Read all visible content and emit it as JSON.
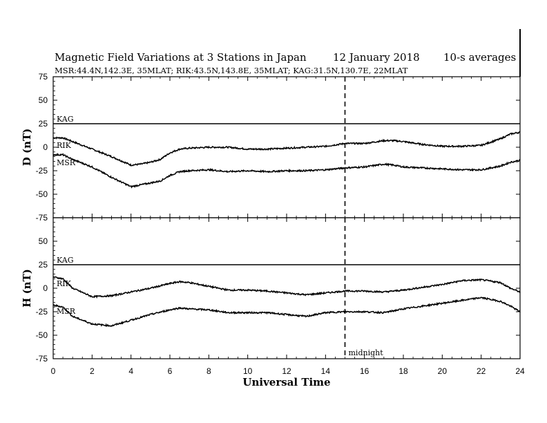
{
  "chart_data": {
    "type": "line",
    "title": "Magnetic Field Variations at 3 Stations in Japan",
    "date": "12 January 2018",
    "resolution": "10-s averages",
    "subtitle": "MSR:44.4N,142.3E, 35MLAT;  RIK:43.5N,143.8E, 35MLAT;  KAG:31.5N,130.7E, 22MLAT",
    "xlabel": "Universal Time",
    "xlim": [
      0,
      24
    ],
    "xticks": [
      0,
      2,
      4,
      6,
      8,
      10,
      12,
      14,
      16,
      18,
      20,
      22,
      24
    ],
    "annotation": {
      "x": 15,
      "label": "midnight",
      "style": "dashed vertical line"
    },
    "panels": [
      {
        "ylabel": "D (nT)",
        "ylim": [
          -75,
          75
        ],
        "yticks": [
          -75,
          -50,
          -25,
          0,
          25,
          50,
          75
        ],
        "series": [
          {
            "name": "KAG",
            "x": [
              0,
              24
            ],
            "values": [
              25,
              25
            ]
          },
          {
            "name": "RIK",
            "x": [
              0,
              0.5,
              1,
              2,
              3,
              4,
              4.5,
              5,
              5.5,
              6,
              6.5,
              7,
              8,
              9,
              10,
              11,
              12,
              13,
              14,
              15,
              16,
              17,
              17.5,
              18,
              19,
              20,
              21,
              22,
              23,
              23.5,
              24
            ],
            "values": [
              10,
              10,
              6,
              -2,
              -10,
              -19,
              -18,
              -16,
              -13,
              -6,
              -2,
              -1,
              0,
              0,
              -2,
              -2,
              -1,
              0,
              1,
              4,
              4,
              7,
              7,
              6,
              3,
              1,
              1,
              2,
              9,
              14,
              16
            ]
          },
          {
            "name": "MSR",
            "x": [
              0,
              0.5,
              1,
              2,
              3,
              4,
              4.5,
              5,
              5.5,
              6,
              6.5,
              7,
              8,
              9,
              10,
              11,
              12,
              13,
              14,
              15,
              16,
              17,
              17.5,
              18,
              19,
              20,
              21,
              22,
              23,
              23.5,
              24
            ],
            "values": [
              -8,
              -8,
              -13,
              -21,
              -32,
              -42,
              -40,
              -38,
              -36,
              -30,
              -26,
              -25,
              -24,
              -26,
              -25,
              -26,
              -25,
              -25,
              -24,
              -22,
              -21,
              -18,
              -19,
              -21,
              -22,
              -23,
              -24,
              -24,
              -20,
              -16,
              -14
            ]
          }
        ]
      },
      {
        "ylabel": "H (nT)",
        "ylim": [
          -75,
          75
        ],
        "yticks": [
          -75,
          -50,
          -25,
          0,
          25,
          50,
          75
        ],
        "series": [
          {
            "name": "KAG",
            "x": [
              0,
              24
            ],
            "values": [
              25,
              25
            ]
          },
          {
            "name": "RIK",
            "x": [
              0,
              0.5,
              1,
              2,
              3,
              4,
              5,
              6,
              6.5,
              7,
              8,
              9,
              10,
              11,
              12,
              13,
              14,
              15,
              16,
              17,
              18,
              19,
              20,
              21,
              22,
              23,
              23.5,
              24
            ],
            "values": [
              12,
              10,
              0,
              -9,
              -8,
              -4,
              0,
              5,
              7,
              6,
              2,
              -2,
              -2,
              -3,
              -5,
              -7,
              -5,
              -3,
              -3,
              -4,
              -2,
              1,
              4,
              8,
              9,
              6,
              0,
              -4
            ]
          },
          {
            "name": "MSR",
            "x": [
              0,
              0.5,
              1,
              2,
              3,
              4,
              5,
              6,
              6.5,
              7,
              8,
              9,
              10,
              11,
              12,
              13,
              14,
              15,
              16,
              17,
              18,
              19,
              20,
              21,
              22,
              23,
              23.5,
              24
            ],
            "values": [
              -18,
              -20,
              -30,
              -38,
              -40,
              -34,
              -28,
              -23,
              -21,
              -22,
              -23,
              -26,
              -26,
              -26,
              -28,
              -30,
              -26,
              -25,
              -25,
              -26,
              -22,
              -19,
              -16,
              -13,
              -10,
              -14,
              -19,
              -25
            ]
          }
        ]
      }
    ]
  }
}
